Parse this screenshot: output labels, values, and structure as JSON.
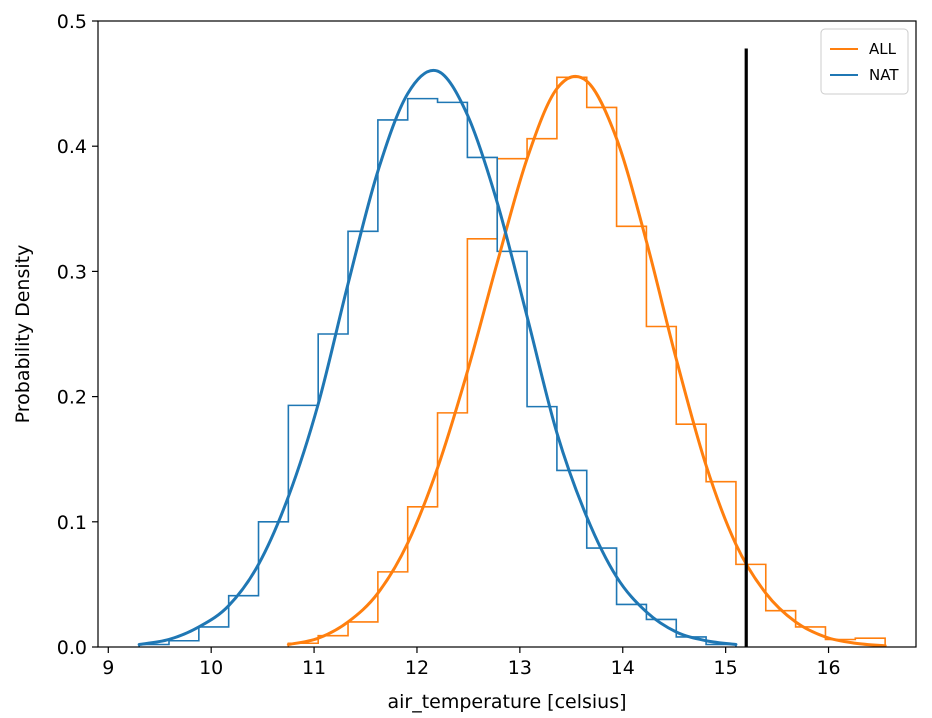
{
  "chart_data": {
    "type": "line",
    "xlabel": "air_temperature [celsius]",
    "ylabel": "Probability Density",
    "xlim": [
      8.9,
      16.85
    ],
    "ylim": [
      0,
      0.5
    ],
    "xticks": [
      9,
      10,
      11,
      12,
      13,
      14,
      15,
      16
    ],
    "yticks": [
      0.0,
      0.1,
      0.2,
      0.3,
      0.4,
      0.5
    ],
    "xtick_labels": [
      "9",
      "10",
      "11",
      "12",
      "13",
      "14",
      "15",
      "16"
    ],
    "ytick_labels": [
      "0.0",
      "0.1",
      "0.2",
      "0.3",
      "0.4",
      "0.5"
    ],
    "grid": false,
    "legend_position": "top-right",
    "vertical_line": {
      "x": 15.2,
      "y_top": 0.478,
      "color": "#000000"
    },
    "series": [
      {
        "name": "ALL",
        "color": "#ff7f0e",
        "hist_edges": [
          10.75,
          11.04,
          11.33,
          11.62,
          11.91,
          12.2,
          12.49,
          12.78,
          13.07,
          13.36,
          13.65,
          13.94,
          14.23,
          14.52,
          14.81,
          15.1,
          15.39,
          15.68,
          15.97,
          16.26,
          16.55
        ],
        "hist_values": [
          0.003,
          0.009,
          0.02,
          0.06,
          0.112,
          0.187,
          0.326,
          0.39,
          0.406,
          0.455,
          0.431,
          0.336,
          0.256,
          0.178,
          0.132,
          0.066,
          0.029,
          0.016,
          0.006,
          0.007
        ],
        "curve_x": [
          10.75,
          11.04,
          11.33,
          11.62,
          11.91,
          12.2,
          12.49,
          12.78,
          13.07,
          13.36,
          13.65,
          13.94,
          14.23,
          14.52,
          14.81,
          15.1,
          15.39,
          15.68,
          15.97,
          16.26,
          16.55
        ],
        "curve_y": [
          0.002,
          0.007,
          0.02,
          0.043,
          0.083,
          0.143,
          0.22,
          0.307,
          0.39,
          0.446,
          0.452,
          0.406,
          0.324,
          0.23,
          0.145,
          0.082,
          0.043,
          0.02,
          0.008,
          0.003,
          0.001
        ]
      },
      {
        "name": "NAT",
        "color": "#1f77b4",
        "hist_edges": [
          9.3,
          9.59,
          9.88,
          10.17,
          10.46,
          10.75,
          11.04,
          11.33,
          11.62,
          11.91,
          12.2,
          12.49,
          12.78,
          13.07,
          13.36,
          13.65,
          13.94,
          14.23,
          14.52,
          14.81,
          15.1
        ],
        "hist_values": [
          0.002,
          0.005,
          0.016,
          0.041,
          0.1,
          0.193,
          0.25,
          0.332,
          0.421,
          0.438,
          0.435,
          0.391,
          0.316,
          0.192,
          0.141,
          0.079,
          0.034,
          0.022,
          0.008,
          0.002
        ],
        "curve_x": [
          9.3,
          9.59,
          9.88,
          10.17,
          10.46,
          10.75,
          11.04,
          11.33,
          11.62,
          11.91,
          12.2,
          12.49,
          12.78,
          13.07,
          13.36,
          13.65,
          13.94,
          14.23,
          14.52,
          14.81,
          15.1
        ],
        "curve_y": [
          0.002,
          0.006,
          0.016,
          0.033,
          0.066,
          0.12,
          0.194,
          0.29,
          0.38,
          0.442,
          0.46,
          0.425,
          0.355,
          0.264,
          0.171,
          0.104,
          0.056,
          0.028,
          0.012,
          0.005,
          0.002
        ]
      }
    ]
  }
}
